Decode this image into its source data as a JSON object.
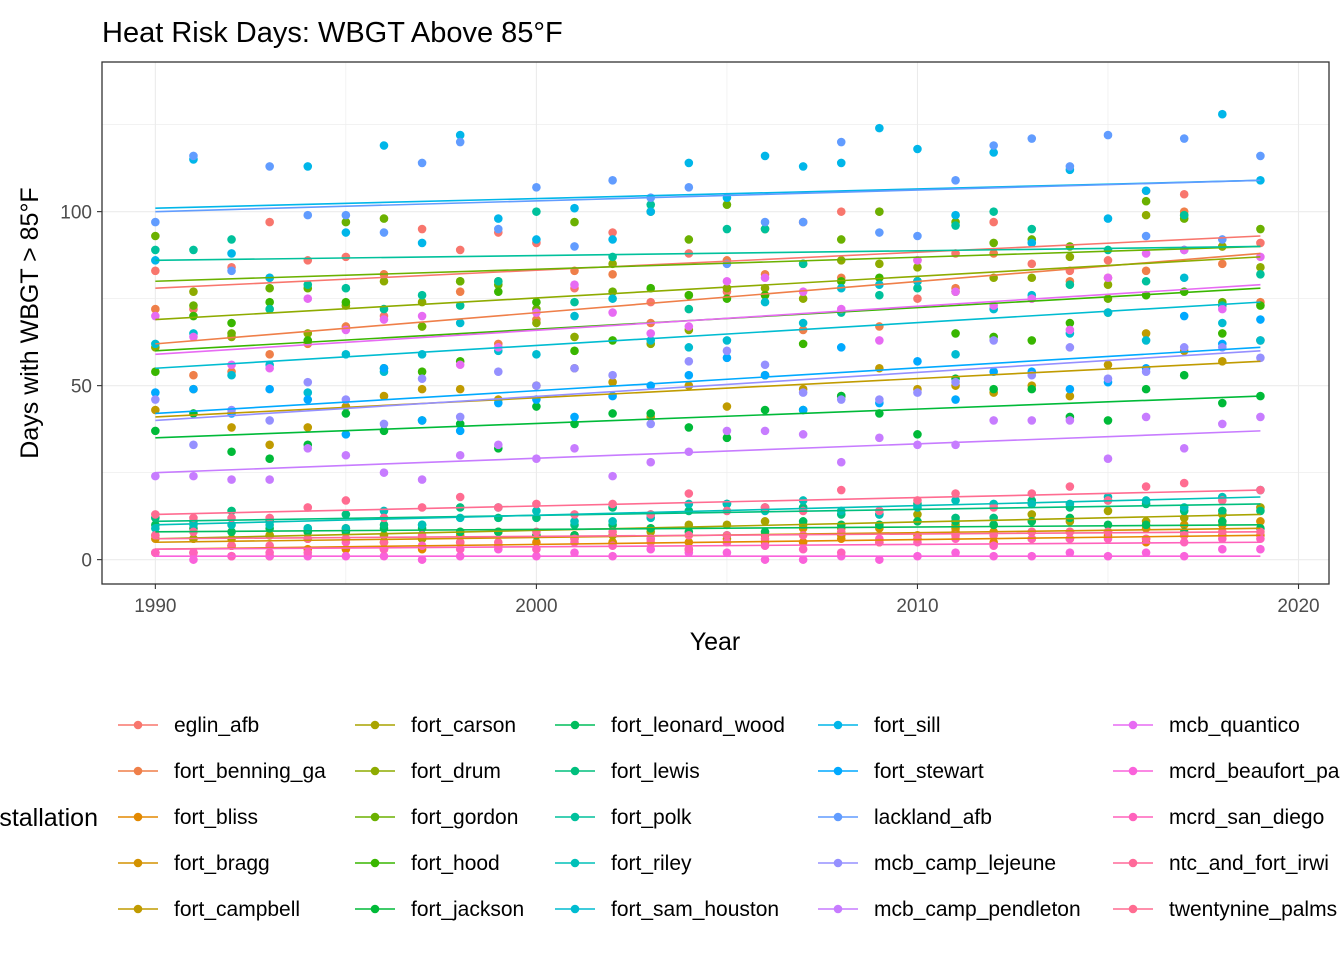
{
  "chart_data": {
    "type": "scatter",
    "title": "Heat Risk Days: WBGT Above 85°F",
    "xlabel": "Year",
    "ylabel": "Days with WBGT > 85°F",
    "xlim": [
      1988.6,
      2020.8
    ],
    "ylim": [
      -7,
      143
    ],
    "xticks": [
      1990,
      2000,
      2010,
      2020
    ],
    "yticks": [
      0,
      50,
      100
    ],
    "grid": true,
    "legend_position": "bottom",
    "legend_title": "installation",
    "trend": "linear fit per series",
    "series": [
      {
        "name": "eglin_afb",
        "color": "#F8766D",
        "start": 78,
        "end": 93
      },
      {
        "name": "fort_benning_ga",
        "color": "#EF7F49",
        "start": 62,
        "end": 88
      },
      {
        "name": "fort_bliss",
        "color": "#E38900",
        "start": 3,
        "end": 7
      },
      {
        "name": "fort_bragg",
        "color": "#D39200",
        "start": 5,
        "end": 9
      },
      {
        "name": "fort_campbell",
        "color": "#C09B00",
        "start": 41,
        "end": 57
      },
      {
        "name": "fort_carson",
        "color": "#A9A400",
        "start": 6,
        "end": 13
      },
      {
        "name": "fort_drum",
        "color": "#8EAB00",
        "start": 69,
        "end": 87
      },
      {
        "name": "fort_gordon",
        "color": "#6BB100",
        "start": 80,
        "end": 90
      },
      {
        "name": "fort_hood",
        "color": "#39B600",
        "start": 60,
        "end": 78
      },
      {
        "name": "fort_jackson",
        "color": "#00BA38",
        "start": 35,
        "end": 47
      },
      {
        "name": "fort_leonard_wood",
        "color": "#00BD5C",
        "start": 8,
        "end": 10
      },
      {
        "name": "fort_lewis",
        "color": "#00BF7D",
        "start": 11,
        "end": 16
      },
      {
        "name": "fort_polk",
        "color": "#00C19C",
        "start": 86,
        "end": 90
      },
      {
        "name": "fort_riley",
        "color": "#00C0B8",
        "start": 10,
        "end": 18
      },
      {
        "name": "fort_sam_houston",
        "color": "#00BCD1",
        "start": 55,
        "end": 74
      },
      {
        "name": "fort_sill",
        "color": "#00B6E9",
        "start": 101,
        "end": 109
      },
      {
        "name": "fort_stewart",
        "color": "#00A9FF",
        "start": 42,
        "end": 61
      },
      {
        "name": "lackland_afb",
        "color": "#619CFF",
        "start": 100,
        "end": 109
      },
      {
        "name": "mcb_camp_lejeune",
        "color": "#9590FF",
        "start": 40,
        "end": 60
      },
      {
        "name": "mcb_camp_pendleton",
        "color": "#C77CFF",
        "start": 25,
        "end": 37
      },
      {
        "name": "mcb_quantico",
        "color": "#E76BF3",
        "start": 59,
        "end": 79
      },
      {
        "name": "mcrd_beaufort_pa",
        "color": "#FA62DB",
        "start": 1,
        "end": 1
      },
      {
        "name": "mcrd_san_diego",
        "color": "#FF62BC",
        "start": 3,
        "end": 5
      },
      {
        "name": "ntc_and_fort_irwi",
        "color": "#FF6999",
        "start": 6,
        "end": 8
      },
      {
        "name": "twentynine_palms",
        "color": "#FF6C91",
        "start": 13,
        "end": 20
      }
    ]
  }
}
